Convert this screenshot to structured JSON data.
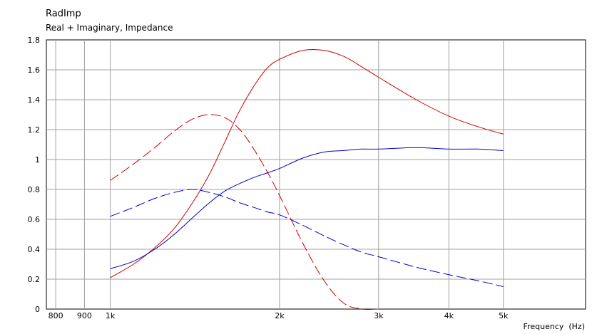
{
  "chart_data": {
    "type": "line",
    "title": "RadImp",
    "subtitle": "Real + Imaginary, Impedance",
    "xlabel": "Frequency  (Hz)",
    "ylabel": "",
    "xscale": "log",
    "xlim": [
      770,
      7000
    ],
    "ylim": [
      0,
      1.8
    ],
    "grid": true,
    "x_ticks": [
      {
        "value": 800,
        "label": "800"
      },
      {
        "value": 900,
        "label": "900"
      },
      {
        "value": 1000,
        "label": "1k"
      },
      {
        "value": 2000,
        "label": "2k"
      },
      {
        "value": 3000,
        "label": "3k"
      },
      {
        "value": 4000,
        "label": "4k"
      },
      {
        "value": 5000,
        "label": "5k"
      }
    ],
    "y_ticks": [
      {
        "value": 0,
        "label": "0"
      },
      {
        "value": 0.2,
        "label": "0.2"
      },
      {
        "value": 0.4,
        "label": "0.4"
      },
      {
        "value": 0.6,
        "label": "0.6"
      },
      {
        "value": 0.8,
        "label": "0.8"
      },
      {
        "value": 1.0,
        "label": "1"
      },
      {
        "value": 1.2,
        "label": "1.2"
      },
      {
        "value": 1.4,
        "label": "1.4"
      },
      {
        "value": 1.6,
        "label": "1.6"
      },
      {
        "value": 1.8,
        "label": "1.8"
      }
    ],
    "series": [
      {
        "color": "#cc0000",
        "dash": "solid",
        "x": [
          1000,
          1100,
          1200,
          1300,
          1400,
          1500,
          1600,
          1700,
          1800,
          1900,
          2000,
          2200,
          2400,
          2600,
          2800,
          3000,
          3500,
          4000,
          4500,
          5000
        ],
        "y": [
          0.21,
          0.3,
          0.41,
          0.54,
          0.71,
          0.9,
          1.12,
          1.33,
          1.49,
          1.61,
          1.67,
          1.73,
          1.73,
          1.69,
          1.62,
          1.55,
          1.4,
          1.29,
          1.22,
          1.17
        ]
      },
      {
        "color": "#cc0000",
        "dash": "dashed",
        "x": [
          1000,
          1100,
          1200,
          1300,
          1400,
          1500,
          1600,
          1700,
          1800,
          1900,
          2000,
          2200,
          2400,
          2600,
          2800,
          3000
        ],
        "y": [
          0.86,
          0.97,
          1.08,
          1.19,
          1.27,
          1.3,
          1.28,
          1.2,
          1.07,
          0.92,
          0.76,
          0.44,
          0.19,
          0.04,
          0.0,
          0.0
        ]
      },
      {
        "color": "#0000cc",
        "dash": "solid",
        "x": [
          1000,
          1100,
          1200,
          1300,
          1400,
          1500,
          1600,
          1700,
          1800,
          1900,
          2000,
          2200,
          2400,
          2600,
          2800,
          3000,
          3500,
          4000,
          4500,
          5000
        ],
        "y": [
          0.27,
          0.32,
          0.4,
          0.5,
          0.61,
          0.71,
          0.79,
          0.84,
          0.88,
          0.91,
          0.94,
          1.01,
          1.05,
          1.06,
          1.07,
          1.07,
          1.08,
          1.07,
          1.07,
          1.06
        ]
      },
      {
        "color": "#0000cc",
        "dash": "dashed",
        "x": [
          1000,
          1100,
          1200,
          1300,
          1400,
          1500,
          1600,
          1700,
          1800,
          1900,
          2000,
          2200,
          2400,
          2600,
          2800,
          3000,
          3500,
          4000,
          4500,
          5000
        ],
        "y": [
          0.62,
          0.68,
          0.74,
          0.78,
          0.8,
          0.78,
          0.75,
          0.71,
          0.68,
          0.65,
          0.63,
          0.56,
          0.49,
          0.43,
          0.38,
          0.35,
          0.28,
          0.23,
          0.19,
          0.15
        ]
      }
    ]
  }
}
